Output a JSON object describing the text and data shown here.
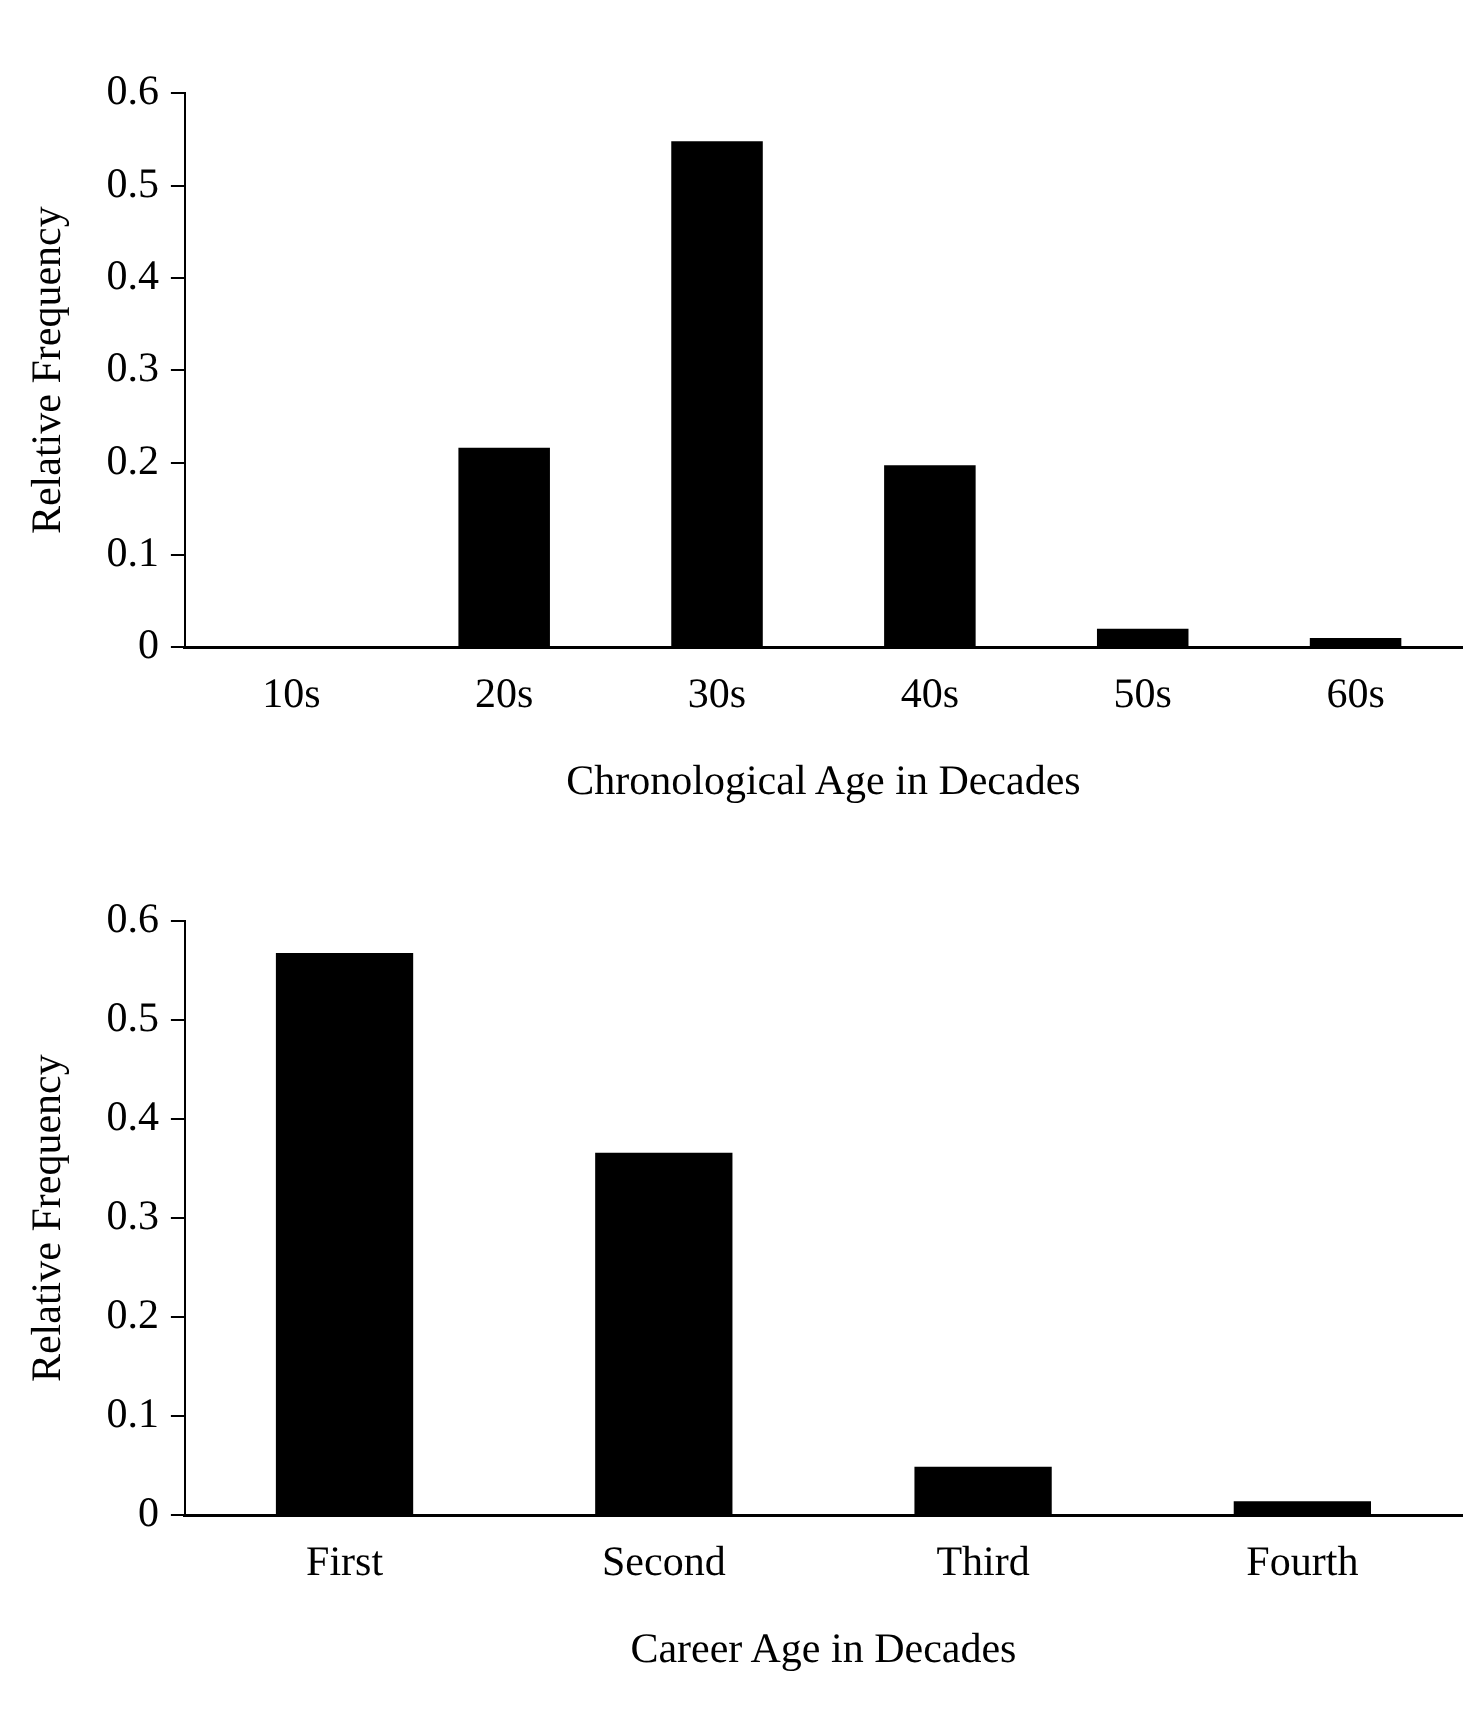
{
  "chart_data": [
    {
      "type": "bar",
      "xlabel": "Chronological Age in Decades",
      "ylabel": "Relative Frequency",
      "categories": [
        "10s",
        "20s",
        "30s",
        "40s",
        "50s",
        "60s"
      ],
      "values": [
        0,
        0.216,
        0.548,
        0.197,
        0.02,
        0.01
      ],
      "color": "#000000",
      "ylim": [
        0,
        0.6
      ],
      "yticks": [
        0,
        0.1,
        0.2,
        0.3,
        0.4,
        0.5,
        0.6
      ]
    },
    {
      "type": "bar",
      "xlabel": "Career Age in Decades",
      "ylabel": "Relative Frequency",
      "categories": [
        "First",
        "Second",
        "Third",
        "Fourth"
      ],
      "values": [
        0.568,
        0.366,
        0.049,
        0.014
      ],
      "color": "#000000",
      "ylim": [
        0,
        0.6
      ],
      "yticks": [
        0,
        0.1,
        0.2,
        0.3,
        0.4,
        0.5,
        0.6
      ]
    }
  ]
}
